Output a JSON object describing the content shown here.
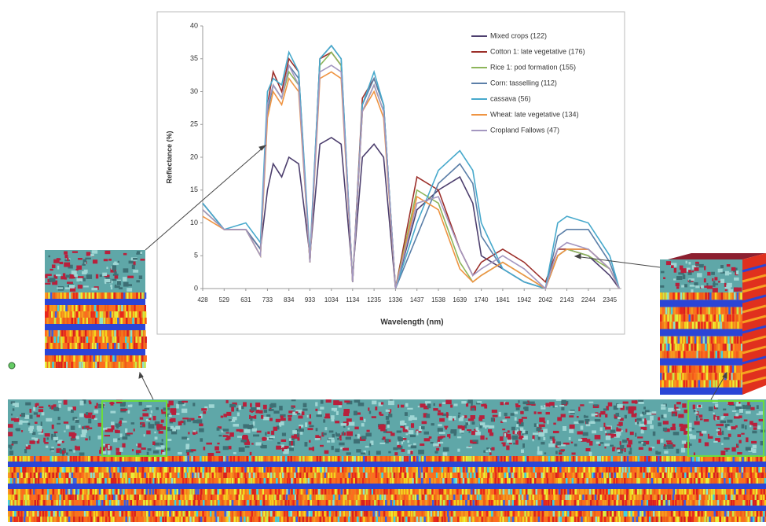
{
  "chart_data": {
    "type": "line",
    "x_label": "Wavelength (nm)",
    "y_label": "Reflectance (%)",
    "x": [
      428,
      529,
      631,
      700,
      733,
      760,
      800,
      834,
      880,
      933,
      980,
      1034,
      1080,
      1134,
      1180,
      1235,
      1280,
      1336,
      1437,
      1538,
      1639,
      1700,
      1740,
      1841,
      1942,
      2042,
      2100,
      2143,
      2244,
      2345,
      2390
    ],
    "xlim": [
      428,
      2400
    ],
    "xticks": [
      428,
      529,
      631,
      733,
      834,
      933,
      1034,
      1134,
      1235,
      1336,
      1437,
      1538,
      1639,
      1740,
      1841,
      1942,
      2042,
      2143,
      2244,
      2345
    ],
    "ylim": [
      0,
      40
    ],
    "yticks": [
      0,
      5,
      10,
      15,
      20,
      25,
      30,
      35,
      40
    ],
    "legend": "top-right",
    "series": [
      {
        "name": "Mixed crops (122)",
        "color": "#4d3f6e",
        "values": [
          13,
          9,
          9,
          6,
          15,
          19,
          17,
          20,
          19,
          5,
          22,
          23,
          22,
          2,
          20,
          22,
          20,
          0,
          12,
          15,
          17,
          13,
          5,
          3,
          1,
          0,
          5,
          6,
          5,
          2,
          0
        ]
      },
      {
        "name": "Cotton 1: late vegetative (176)",
        "color": "#9c2f2a",
        "values": [
          12,
          9,
          9,
          6,
          28,
          33,
          30,
          35,
          33,
          4,
          35,
          36,
          34,
          1,
          29,
          32,
          28,
          0,
          17,
          15,
          6,
          2,
          4,
          6,
          4,
          1,
          6,
          6,
          6,
          3,
          0
        ]
      },
      {
        "name": "Rice 1: pod formation (155)",
        "color": "#8db55a",
        "values": [
          12,
          9,
          9,
          5,
          27,
          31,
          29,
          33,
          31,
          4,
          34,
          36,
          34,
          1,
          27,
          31,
          27,
          0,
          15,
          13,
          4,
          1,
          2,
          4,
          2,
          0,
          5,
          6,
          5,
          3,
          0
        ]
      },
      {
        "name": "Corn: tasselling (112)",
        "color": "#5b7fa8",
        "values": [
          13,
          9,
          9,
          6,
          27,
          31,
          29,
          34,
          32,
          4,
          35,
          37,
          35,
          1,
          28,
          32,
          28,
          0,
          8,
          16,
          19,
          16,
          8,
          3,
          1,
          0,
          8,
          9,
          9,
          4,
          0
        ]
      },
      {
        "name": "cassava (56)",
        "color": "#47a9cc",
        "values": [
          13,
          9,
          10,
          7,
          30,
          32,
          31,
          36,
          33,
          5,
          35,
          37,
          35,
          1,
          28,
          33,
          28,
          0,
          10,
          18,
          21,
          18,
          10,
          3,
          1,
          0,
          10,
          11,
          10,
          5,
          0
        ]
      },
      {
        "name": "Wheat: late vegetative (134)",
        "color": "#ef9442",
        "values": [
          11,
          9,
          9,
          5,
          26,
          30,
          28,
          32,
          30,
          4,
          32,
          33,
          32,
          1,
          27,
          30,
          26,
          0,
          14,
          12,
          3,
          1,
          2,
          4,
          2,
          0,
          5,
          6,
          6,
          3,
          0
        ]
      },
      {
        "name": "Cropland Fallows (47)",
        "color": "#a497c0",
        "values": [
          12,
          9,
          9,
          5,
          28,
          31,
          29,
          34,
          31,
          4,
          33,
          34,
          33,
          1,
          27,
          31,
          27,
          0,
          13,
          14,
          6,
          2,
          3,
          5,
          3,
          0,
          6,
          7,
          6,
          3,
          0
        ]
      }
    ]
  }
}
